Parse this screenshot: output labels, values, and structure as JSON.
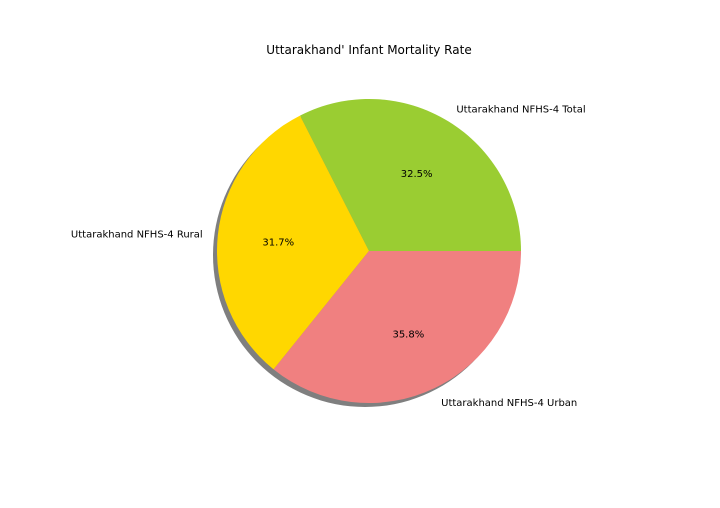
{
  "chart_data": {
    "type": "pie",
    "title": "Uttarakhand' Infant Mortality Rate",
    "slices": [
      {
        "label": "Uttarakhand NFHS-4 Total",
        "percent": 32.5,
        "percent_label": "32.5%",
        "color": "#9acd32"
      },
      {
        "label": "Uttarakhand NFHS-4 Rural",
        "percent": 31.7,
        "percent_label": "31.7%",
        "color": "#ffd700"
      },
      {
        "label": "Uttarakhand NFHS-4 Urban",
        "percent": 35.8,
        "percent_label": "35.8%",
        "color": "#f08080"
      }
    ],
    "start_angle_deg": 0,
    "direction": "counterclockwise",
    "shadow": true,
    "legend": "none"
  }
}
